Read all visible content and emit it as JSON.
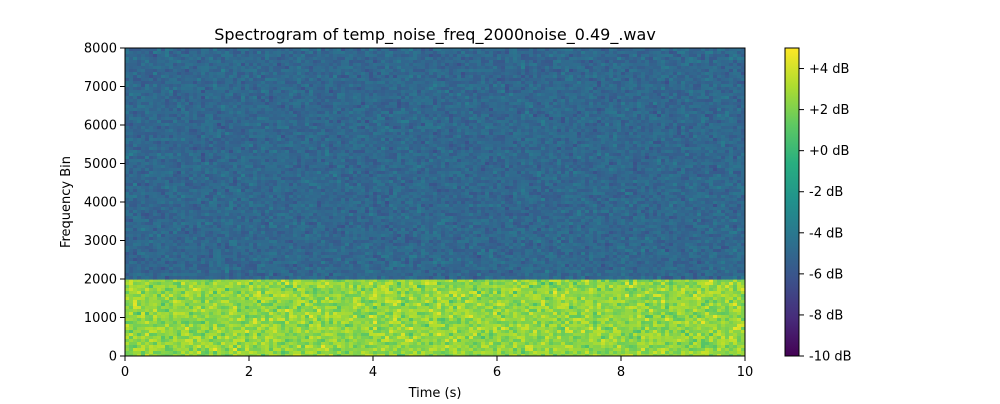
{
  "chart_data": {
    "type": "heatmap",
    "title": "Spectrogram of temp_noise_freq_2000noise_0.49_.wav",
    "xlabel": "Time (s)",
    "ylabel": "Frequency Bin",
    "xlim": [
      0,
      10
    ],
    "ylim": [
      0,
      8000
    ],
    "x_ticks": [
      "0",
      "2",
      "4",
      "6",
      "8",
      "10"
    ],
    "y_ticks": [
      "0",
      "1000",
      "2000",
      "3000",
      "4000",
      "5000",
      "6000",
      "7000",
      "8000"
    ],
    "regions": [
      {
        "freq_range": [
          0,
          2000
        ],
        "time_range": [
          0,
          10
        ],
        "level_db": 2.5,
        "appearance": "bright yellow-green noise"
      },
      {
        "freq_range": [
          2000,
          8000
        ],
        "time_range": [
          0,
          10
        ],
        "level_db": -5,
        "appearance": "dark teal noise"
      }
    ],
    "colorbar": {
      "colormap": "viridis",
      "range_db": [
        -10,
        5
      ],
      "tick_labels": [
        "+4 dB",
        "+2 dB",
        "+0 dB",
        "-2 dB",
        "-4 dB",
        "-6 dB",
        "-8 dB",
        "-10 dB"
      ]
    },
    "grid": false
  }
}
